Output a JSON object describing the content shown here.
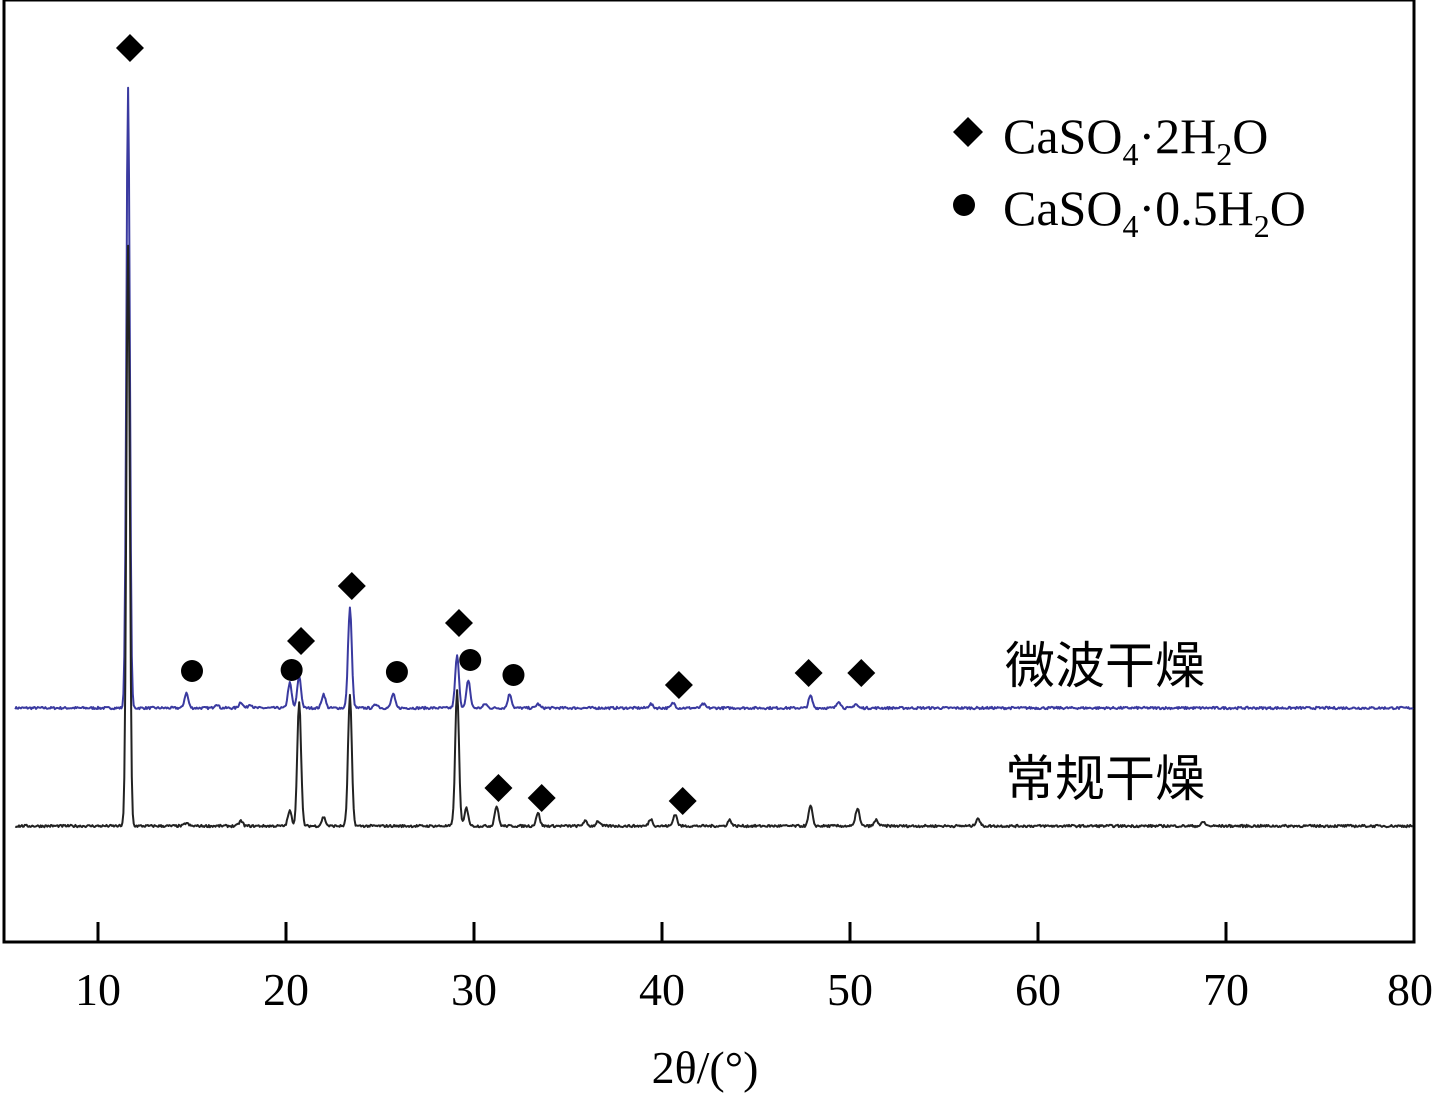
{
  "chart_data": {
    "type": "line",
    "title": "",
    "xlabel": "2θ/(°)",
    "ylabel": "",
    "xlim": [
      5,
      80
    ],
    "x_ticks": [
      10,
      20,
      30,
      40,
      50,
      60,
      70,
      80
    ],
    "x_tick_labels": [
      "10",
      "20",
      "30",
      "40",
      "50",
      "60",
      "70",
      "80"
    ],
    "y_ticks_shown": false,
    "grid": false,
    "legend_placement": "top-right",
    "colors": {
      "microwave": "#3a3aa0",
      "conventional": "#222222",
      "frame": "#000000"
    },
    "legend": [
      {
        "marker": "diamond",
        "formula": [
          "CaSO",
          "4",
          "·2H",
          "2",
          "O"
        ]
      },
      {
        "marker": "circle",
        "formula": [
          "CaSO",
          "4",
          "·0.5H",
          "2",
          "O"
        ]
      }
    ],
    "series": [
      {
        "name": "微波干燥",
        "color": "#3a3aa0",
        "baseline": 0,
        "peaks": [
          [
            11.6,
            620
          ],
          [
            14.7,
            15
          ],
          [
            16.3,
            4
          ],
          [
            17.6,
            6
          ],
          [
            18.1,
            4
          ],
          [
            20.2,
            25
          ],
          [
            20.7,
            32
          ],
          [
            22.0,
            14
          ],
          [
            23.4,
            100
          ],
          [
            24.8,
            4
          ],
          [
            25.7,
            14
          ],
          [
            29.1,
            52
          ],
          [
            29.7,
            28
          ],
          [
            30.6,
            4
          ],
          [
            31.9,
            14
          ],
          [
            33.4,
            4
          ],
          [
            39.4,
            4
          ],
          [
            40.6,
            5
          ],
          [
            42.2,
            4
          ],
          [
            47.9,
            12
          ],
          [
            49.4,
            7
          ],
          [
            50.3,
            4
          ]
        ]
      },
      {
        "name": "常规干燥",
        "color": "#222222",
        "baseline": 0,
        "peaks": [
          [
            11.6,
            580
          ],
          [
            14.7,
            3
          ],
          [
            17.6,
            5
          ],
          [
            20.2,
            15
          ],
          [
            20.7,
            125
          ],
          [
            22.0,
            9
          ],
          [
            23.4,
            130
          ],
          [
            29.1,
            135
          ],
          [
            29.6,
            18
          ],
          [
            31.2,
            20
          ],
          [
            33.4,
            13
          ],
          [
            35.9,
            5
          ],
          [
            36.6,
            5
          ],
          [
            39.4,
            7
          ],
          [
            40.7,
            12
          ],
          [
            43.6,
            6
          ],
          [
            47.9,
            20
          ],
          [
            50.4,
            18
          ],
          [
            51.4,
            6
          ],
          [
            56.8,
            8
          ],
          [
            68.8,
            4
          ]
        ]
      }
    ],
    "markers": [
      {
        "type": "diamond",
        "x": 11.7,
        "y_level": 660
      },
      {
        "type": "circle",
        "x": 15.0,
        "y_level": 37
      },
      {
        "type": "circle",
        "x": 20.3,
        "y_level": 38
      },
      {
        "type": "diamond",
        "x": 20.8,
        "y_level": 67
      },
      {
        "type": "diamond",
        "x": 23.5,
        "y_level": 122
      },
      {
        "type": "circle",
        "x": 25.9,
        "y_level": 36
      },
      {
        "type": "diamond",
        "x": 29.2,
        "y_level": 85
      },
      {
        "type": "circle",
        "x": 29.8,
        "y_level": 48
      },
      {
        "type": "circle",
        "x": 32.1,
        "y_level": 33
      },
      {
        "type": "diamond",
        "x": 40.9,
        "y_level": 23
      },
      {
        "type": "diamond",
        "x": 47.8,
        "y_level": 35
      },
      {
        "type": "diamond",
        "x": 50.6,
        "y_level": 35
      },
      {
        "type": "diamond",
        "x": 31.3,
        "y_level": -80
      },
      {
        "type": "diamond",
        "x": 33.6,
        "y_level": -90
      },
      {
        "type": "diamond",
        "x": 41.1,
        "y_level": -93
      }
    ]
  }
}
